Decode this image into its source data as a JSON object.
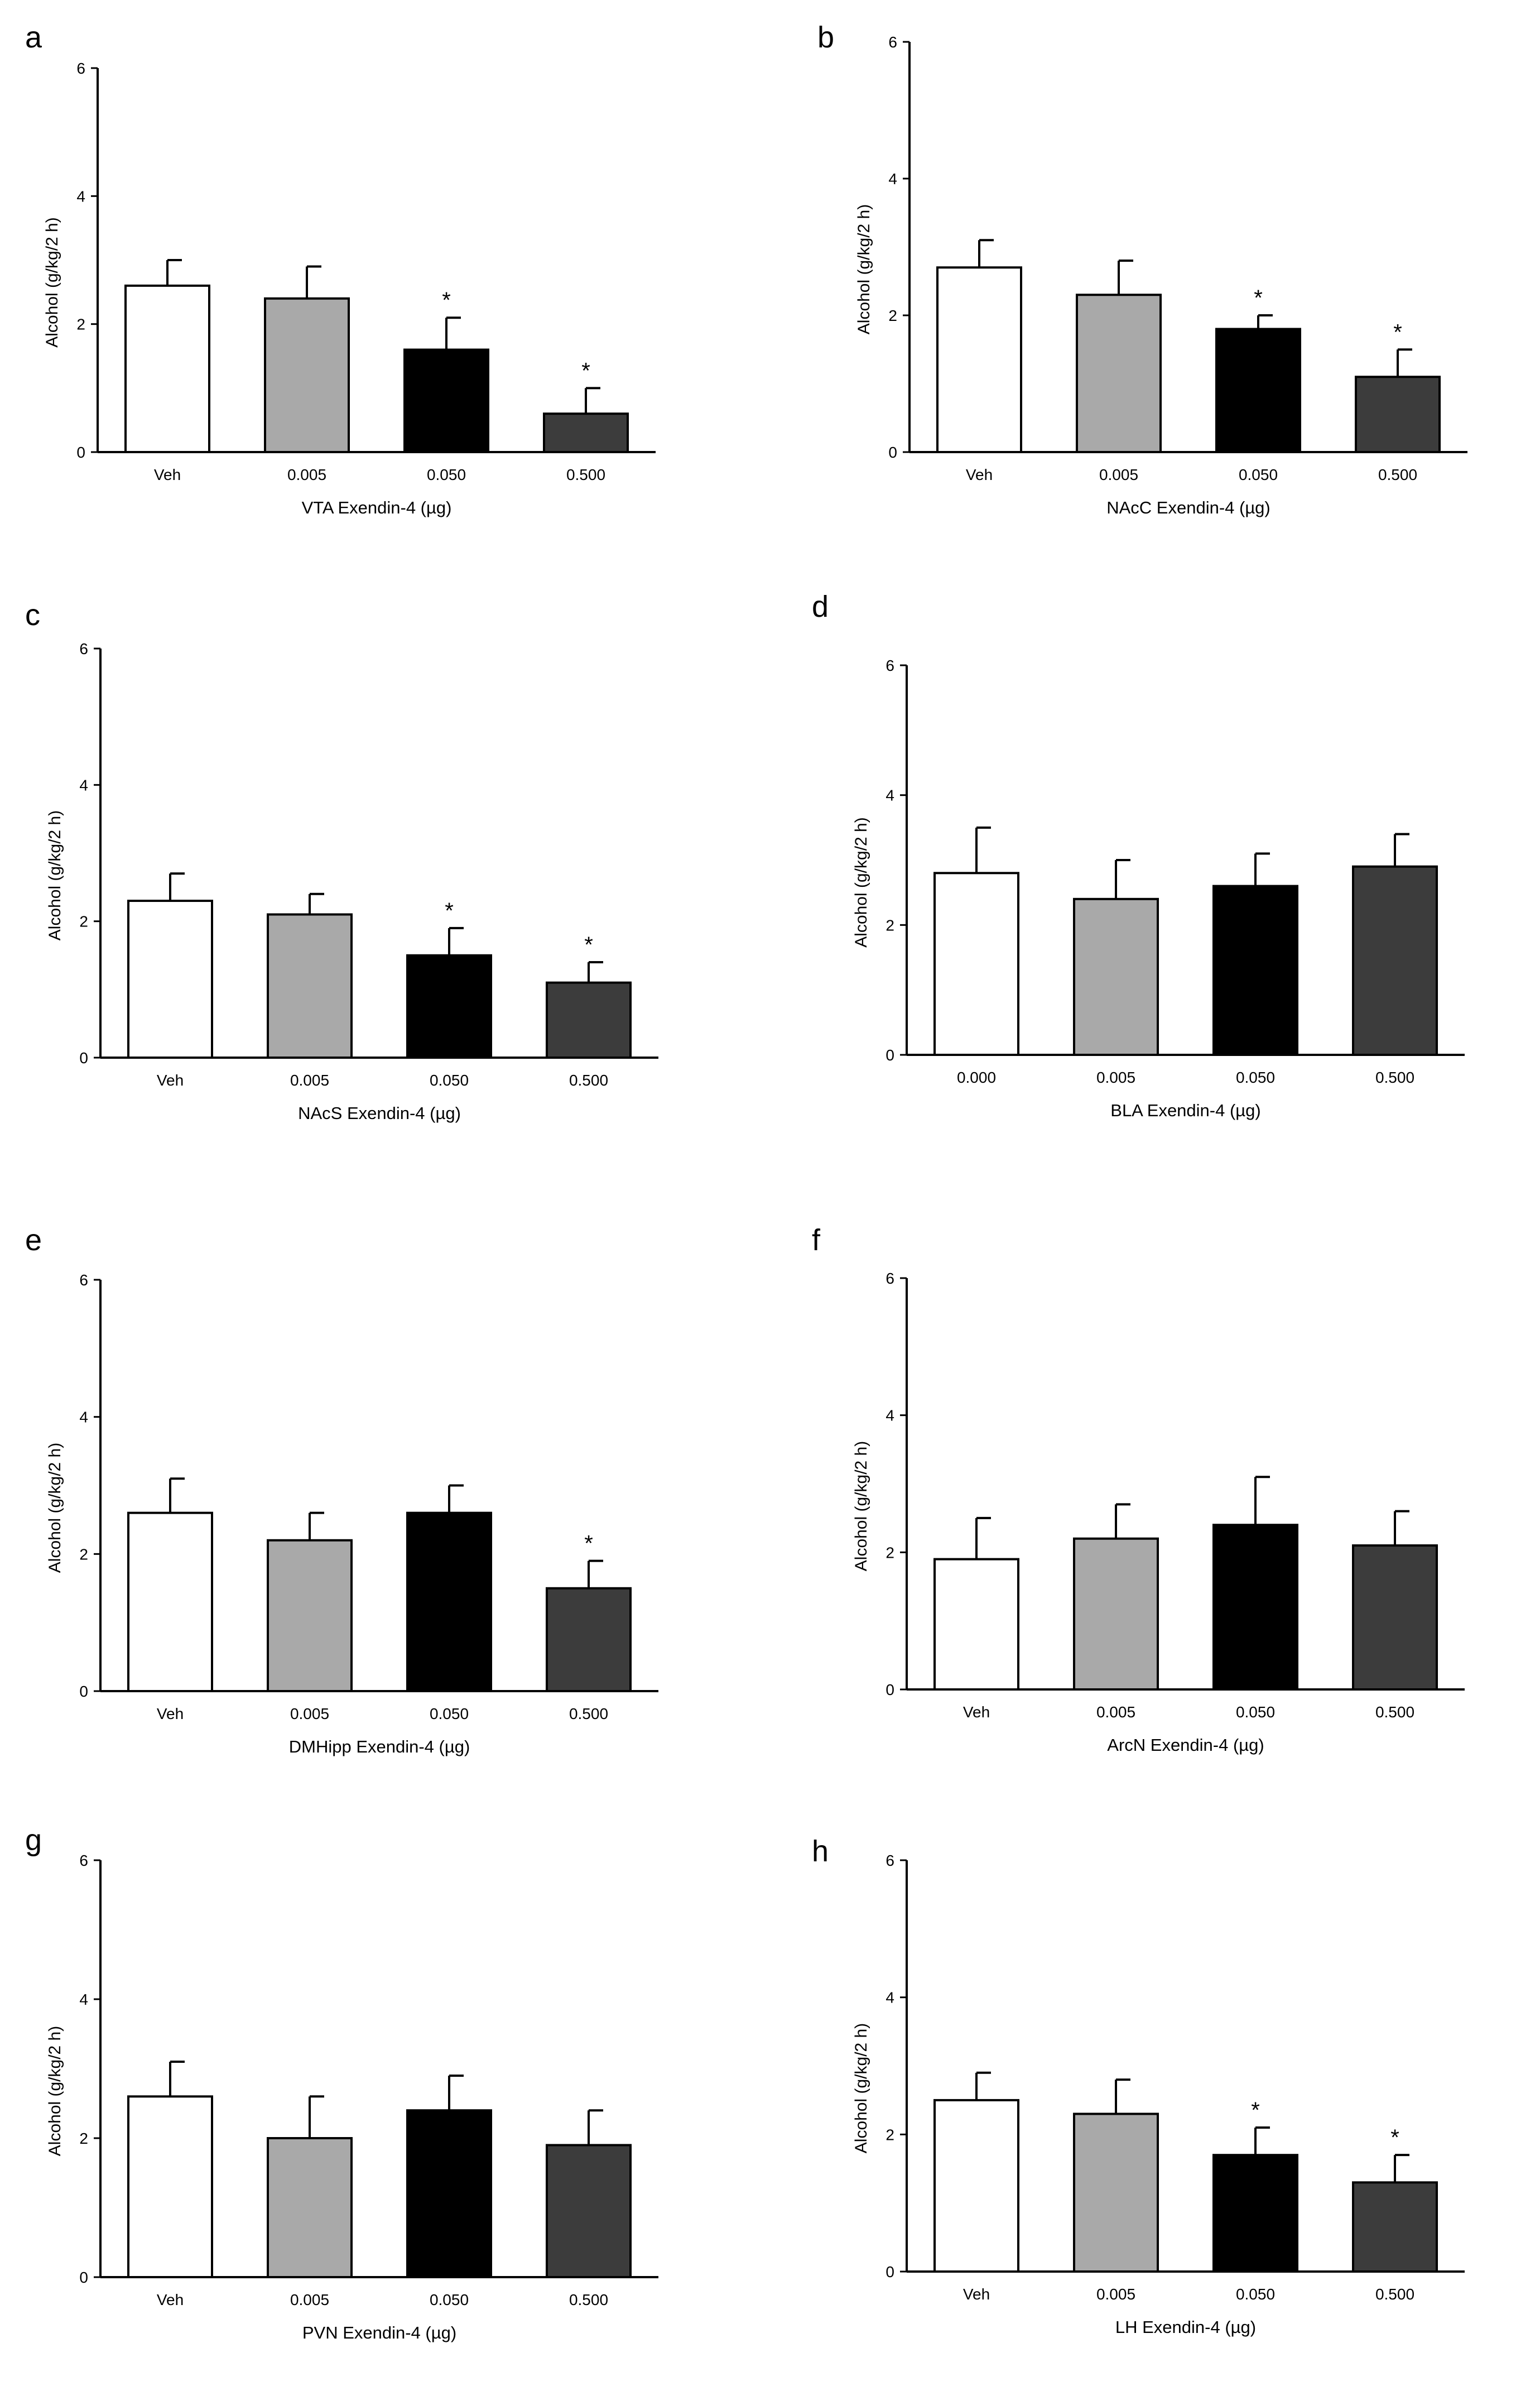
{
  "figure": {
    "bar_colors": [
      "#ffffff",
      "#a9a9a9",
      "#000000",
      "#3c3c3c"
    ],
    "axis_color": "#000000"
  },
  "chart_data": [
    {
      "panel": "a",
      "type": "bar",
      "categories": [
        "Veh",
        "0.005",
        "0.050",
        "0.500"
      ],
      "values": [
        2.6,
        2.4,
        1.6,
        0.6
      ],
      "errors": [
        0.4,
        0.5,
        0.5,
        0.4
      ],
      "significant": [
        false,
        false,
        true,
        true
      ],
      "star": "*",
      "ylim": [
        0,
        6
      ],
      "yticks": [
        "0",
        "2",
        "4",
        "6"
      ],
      "ylabel": "Alcohol (g/kg/2 h)",
      "xlabel": "VTA Exendin-4 (µg)"
    },
    {
      "panel": "b",
      "type": "bar",
      "categories": [
        "Veh",
        "0.005",
        "0.050",
        "0.500"
      ],
      "values": [
        2.7,
        2.3,
        1.8,
        1.1
      ],
      "errors": [
        0.4,
        0.5,
        0.2,
        0.4
      ],
      "significant": [
        false,
        false,
        true,
        true
      ],
      "star": "*",
      "ylim": [
        0,
        6
      ],
      "yticks": [
        "0",
        "2",
        "4",
        "6"
      ],
      "ylabel": "Alcohol (g/kg/2 h)",
      "xlabel": "NAcC Exendin-4 (µg)"
    },
    {
      "panel": "c",
      "type": "bar",
      "categories": [
        "Veh",
        "0.005",
        "0.050",
        "0.500"
      ],
      "values": [
        2.3,
        2.1,
        1.5,
        1.1
      ],
      "errors": [
        0.4,
        0.3,
        0.4,
        0.3
      ],
      "significant": [
        false,
        false,
        true,
        true
      ],
      "star": "*",
      "ylim": [
        0,
        6
      ],
      "yticks": [
        "0",
        "2",
        "4",
        "6"
      ],
      "ylabel": "Alcohol (g/kg/2 h)",
      "xlabel": "NAcS Exendin-4 (µg)"
    },
    {
      "panel": "d",
      "type": "bar",
      "categories": [
        "0.000",
        "0.005",
        "0.050",
        "0.500"
      ],
      "values": [
        2.8,
        2.4,
        2.6,
        2.9
      ],
      "errors": [
        0.7,
        0.6,
        0.5,
        0.5
      ],
      "significant": [
        false,
        false,
        false,
        false
      ],
      "star": "*",
      "ylim": [
        0,
        6
      ],
      "yticks": [
        "0",
        "2",
        "4",
        "6"
      ],
      "ylabel": "Alcohol (g/kg/2 h)",
      "xlabel": "BLA Exendin-4 (µg)"
    },
    {
      "panel": "e",
      "type": "bar",
      "categories": [
        "Veh",
        "0.005",
        "0.050",
        "0.500"
      ],
      "values": [
        2.6,
        2.2,
        2.6,
        1.5
      ],
      "errors": [
        0.5,
        0.4,
        0.4,
        0.4
      ],
      "significant": [
        false,
        false,
        false,
        true
      ],
      "star": "*",
      "ylim": [
        0,
        6
      ],
      "yticks": [
        "0",
        "2",
        "4",
        "6"
      ],
      "ylabel": "Alcohol (g/kg/2 h)",
      "xlabel": "DMHipp Exendin-4 (µg)"
    },
    {
      "panel": "f",
      "type": "bar",
      "categories": [
        "Veh",
        "0.005",
        "0.050",
        "0.500"
      ],
      "values": [
        1.9,
        2.2,
        2.4,
        2.1
      ],
      "errors": [
        0.6,
        0.5,
        0.7,
        0.5
      ],
      "significant": [
        false,
        false,
        false,
        false
      ],
      "star": "*",
      "ylim": [
        0,
        6
      ],
      "yticks": [
        "0",
        "2",
        "4",
        "6"
      ],
      "ylabel": "Alcohol (g/kg/2 h)",
      "xlabel": "ArcN Exendin-4 (µg)"
    },
    {
      "panel": "g",
      "type": "bar",
      "categories": [
        "Veh",
        "0.005",
        "0.050",
        "0.500"
      ],
      "values": [
        2.6,
        2.0,
        2.4,
        1.9
      ],
      "errors": [
        0.5,
        0.6,
        0.5,
        0.5
      ],
      "significant": [
        false,
        false,
        false,
        false
      ],
      "star": "*",
      "ylim": [
        0,
        6
      ],
      "yticks": [
        "0",
        "2",
        "4",
        "6"
      ],
      "ylabel": "Alcohol (g/kg/2 h)",
      "xlabel": "PVN Exendin-4 (µg)"
    },
    {
      "panel": "h",
      "type": "bar",
      "categories": [
        "Veh",
        "0.005",
        "0.050",
        "0.500"
      ],
      "values": [
        2.5,
        2.3,
        1.7,
        1.3
      ],
      "errors": [
        0.4,
        0.5,
        0.4,
        0.4
      ],
      "significant": [
        false,
        false,
        true,
        true
      ],
      "star": "*",
      "ylim": [
        0,
        6
      ],
      "yticks": [
        "0",
        "2",
        "4",
        "6"
      ],
      "ylabel": "Alcohol (g/kg/2 h)",
      "xlabel": "LH Exendin-4 (µg)"
    }
  ]
}
